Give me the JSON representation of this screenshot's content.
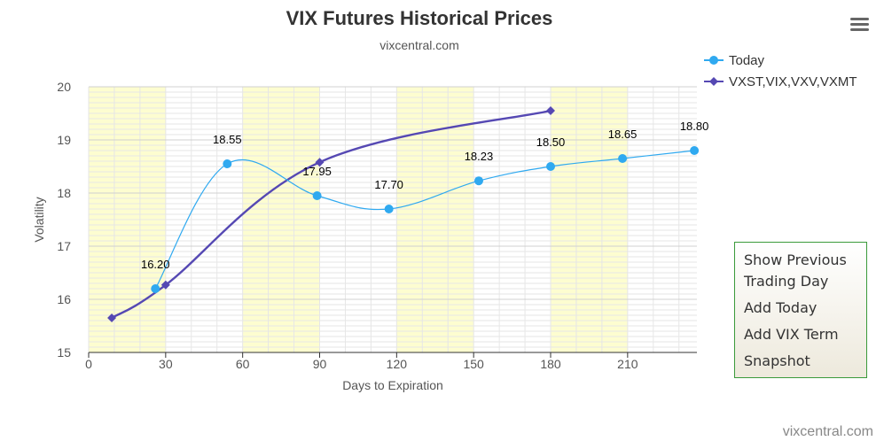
{
  "header": {
    "title": "VIX Futures Historical Prices",
    "subtitle": "vixcentral.com"
  },
  "credit": "vixcentral.com",
  "menu": {
    "icon": "hamburger-menu-icon",
    "items": [
      {
        "label_line1": "Show Previous",
        "label_line2": "Trading Day"
      },
      {
        "label": "Add Today"
      },
      {
        "label": "Add VIX Term"
      },
      {
        "label": "Snapshot"
      }
    ]
  },
  "colors": {
    "today": "#2fa9f0",
    "indices": "#5548b3",
    "band": "#fdfdd0",
    "grid": "#e6e6e6"
  },
  "chart_data": {
    "type": "line",
    "title": "VIX Futures Historical Prices",
    "subtitle": "vixcentral.com",
    "xlabel": "Days to Expiration",
    "ylabel": "Volatility",
    "xlim": [
      0,
      237
    ],
    "ylim": [
      15,
      20
    ],
    "xticks": [
      0,
      30,
      60,
      90,
      120,
      150,
      180,
      210
    ],
    "yticks": [
      15,
      16,
      17,
      18,
      19,
      20
    ],
    "grid": true,
    "legend_position": "top-right",
    "shaded_bands": [
      [
        0,
        30
      ],
      [
        60,
        90
      ],
      [
        120,
        150
      ],
      [
        180,
        210
      ]
    ],
    "series": [
      {
        "name": "Today",
        "marker": "circle",
        "x": [
          26,
          54,
          89,
          117,
          152,
          180,
          208,
          236
        ],
        "y": [
          16.2,
          18.55,
          17.95,
          17.7,
          18.23,
          18.5,
          18.65,
          18.8
        ],
        "labels": [
          "16.20",
          "18.55",
          "17.95",
          "17.70",
          "18.23",
          "18.50",
          "18.65",
          "18.80"
        ]
      },
      {
        "name": "VXST,VIX,VXV,VXMT",
        "marker": "diamond",
        "x": [
          9,
          30,
          90,
          180
        ],
        "y": [
          15.65,
          16.27,
          18.58,
          19.55
        ]
      }
    ]
  }
}
